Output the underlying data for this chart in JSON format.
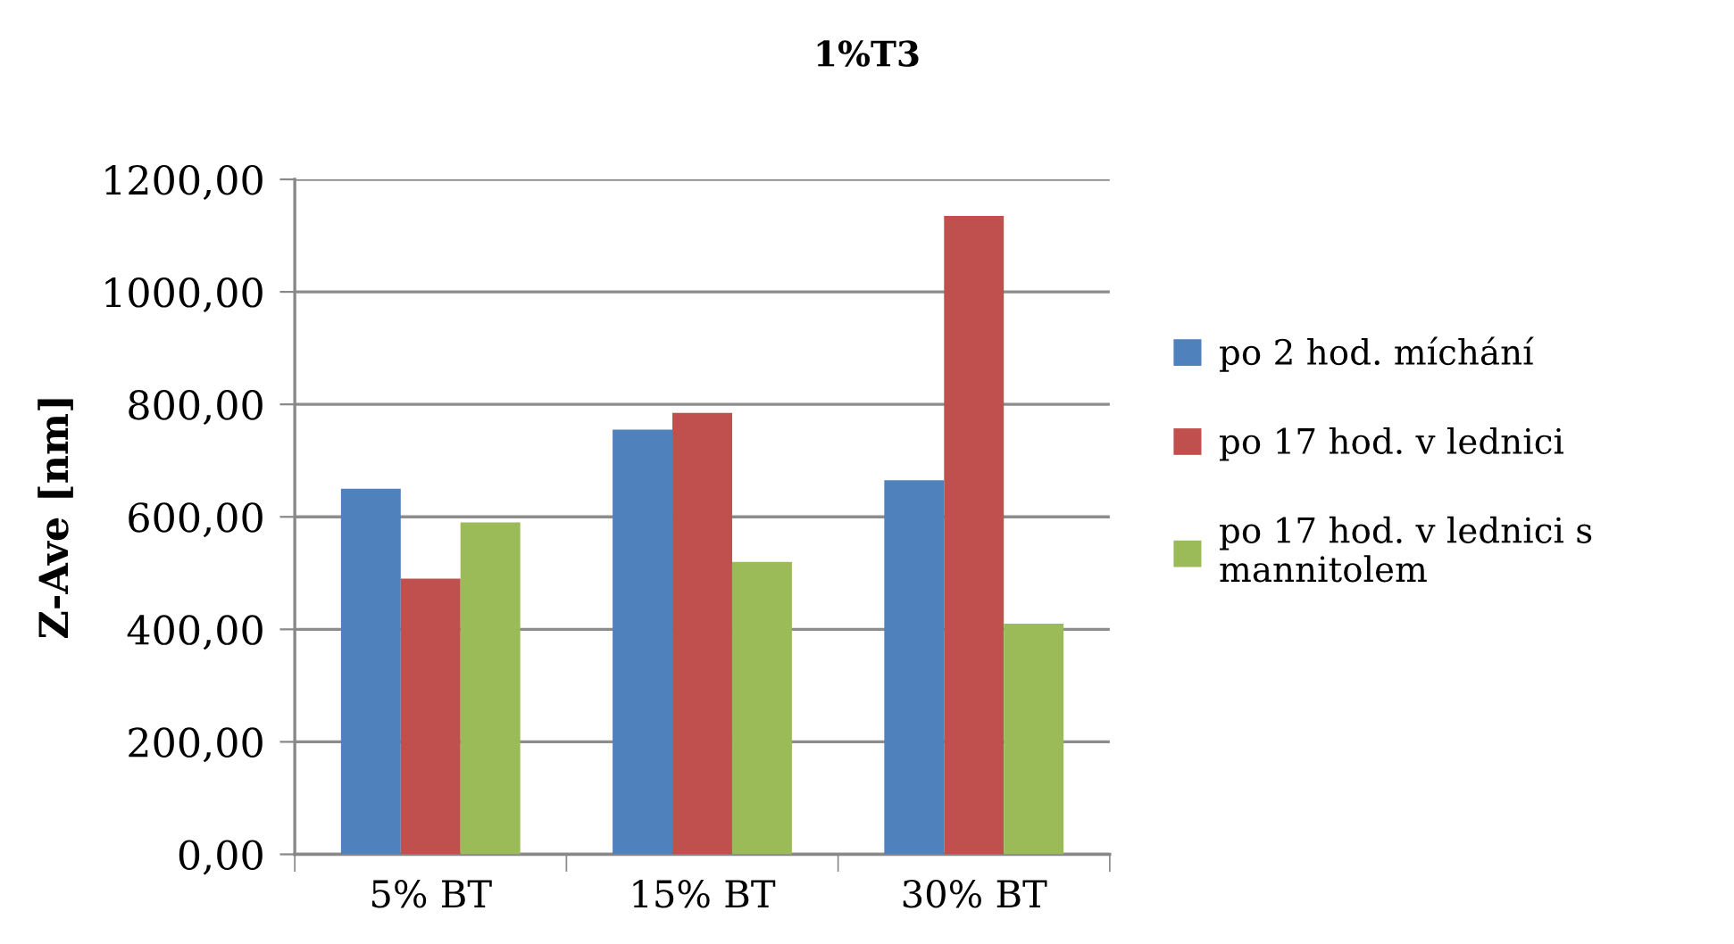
{
  "chart_data": {
    "type": "bar",
    "title": "1%T3",
    "ylabel": "Z-Ave [nm]",
    "categories": [
      "5% BT",
      "15% BT",
      "30% BT"
    ],
    "series": [
      {
        "name": "po 2 hod. míchání",
        "color": "#4f81bd",
        "values": [
          650,
          755,
          665
        ]
      },
      {
        "name": "po 17 hod. v lednici",
        "color": "#c0504d",
        "values": [
          490,
          785,
          1135
        ]
      },
      {
        "name": "po 17 hod. v lednici s\nmannitolem",
        "color": "#9bbb59",
        "values": [
          590,
          520,
          410
        ]
      }
    ],
    "ylim": [
      0,
      1200
    ],
    "yticks": [
      {
        "value": 0,
        "label": "0,00"
      },
      {
        "value": 200,
        "label": "200,00"
      },
      {
        "value": 400,
        "label": "400,00"
      },
      {
        "value": 600,
        "label": "600,00"
      },
      {
        "value": 800,
        "label": "800,00"
      },
      {
        "value": 1000,
        "label": "1000,00"
      },
      {
        "value": 1200,
        "label": "1200,00"
      }
    ],
    "grid": "y",
    "legend": "right"
  }
}
